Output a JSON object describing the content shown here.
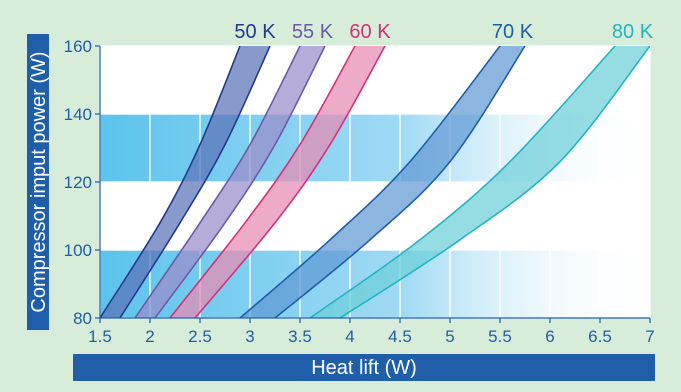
{
  "chart_data": {
    "type": "area",
    "title": "",
    "xlabel": "Heat lift (W)",
    "ylabel": "Compressor imput power (W)",
    "xlim": [
      1.5,
      7
    ],
    "ylim": [
      80,
      160
    ],
    "x_ticks": [
      "1.5",
      "2",
      "2.5",
      "3",
      "3.5",
      "4",
      "4.5",
      "5",
      "5.5",
      "6",
      "6.5",
      "7"
    ],
    "y_ticks": [
      "80",
      "100",
      "120",
      "140",
      "160"
    ],
    "grid": true,
    "series": [
      {
        "name": "50 K",
        "color": "#233a8c",
        "fill": "#5a72b8",
        "upper": [
          [
            1.5,
            80
          ],
          [
            2.1,
            108
          ],
          [
            2.5,
            131
          ],
          [
            2.9,
            160
          ]
        ],
        "lower": [
          [
            1.7,
            80
          ],
          [
            2.3,
            108
          ],
          [
            2.75,
            131
          ],
          [
            3.2,
            160
          ]
        ]
      },
      {
        "name": "55 K",
        "color": "#6b5aa8",
        "fill": "#9a8ccb",
        "upper": [
          [
            1.85,
            80
          ],
          [
            2.5,
            108
          ],
          [
            3.0,
            131
          ],
          [
            3.5,
            160
          ]
        ],
        "lower": [
          [
            2.05,
            80
          ],
          [
            2.75,
            108
          ],
          [
            3.25,
            131
          ],
          [
            3.75,
            160
          ]
        ]
      },
      {
        "name": "60 K",
        "color": "#d2317a",
        "fill": "#e88ab3",
        "upper": [
          [
            2.2,
            80
          ],
          [
            2.95,
            108
          ],
          [
            3.5,
            131
          ],
          [
            4.05,
            160
          ]
        ],
        "lower": [
          [
            2.45,
            80
          ],
          [
            3.25,
            108
          ],
          [
            3.8,
            131
          ],
          [
            4.35,
            160
          ]
        ]
      },
      {
        "name": "70 K",
        "color": "#1f5ea8",
        "fill": "#5f98d4",
        "upper": [
          [
            2.9,
            80
          ],
          [
            3.8,
            103
          ],
          [
            4.6,
            126
          ],
          [
            5.5,
            160
          ]
        ],
        "lower": [
          [
            3.25,
            80
          ],
          [
            4.2,
            103
          ],
          [
            5.0,
            126
          ],
          [
            5.75,
            160
          ]
        ]
      },
      {
        "name": "80 K",
        "color": "#22b4c4",
        "fill": "#6dcfd8",
        "upper": [
          [
            3.6,
            80
          ],
          [
            4.7,
            103
          ],
          [
            5.6,
            126
          ],
          [
            6.65,
            160
          ]
        ],
        "lower": [
          [
            3.9,
            80
          ],
          [
            5.1,
            103
          ],
          [
            6.1,
            126
          ],
          [
            7.0,
            160
          ]
        ]
      }
    ],
    "highlight_bands": [
      {
        "from": 120,
        "to": 140
      },
      {
        "from": 80,
        "to": 100
      }
    ]
  },
  "colors": {
    "page_background": "#d7ecd9",
    "plot_background": "#ffffff",
    "band_start": "#5bc3ec",
    "label_bar": "#1f5ea8"
  }
}
